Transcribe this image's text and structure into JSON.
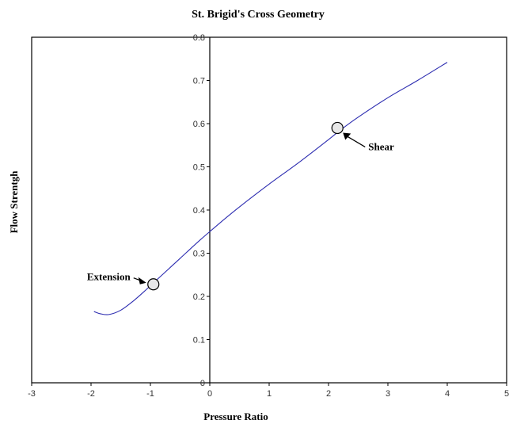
{
  "colors": {
    "curve": "#2c2cb0",
    "axis": "#000000",
    "marker_fill": "#e8e8e8",
    "text": "#000000"
  },
  "chart_data": {
    "type": "line",
    "title": "St. Brigid's Cross Geometry",
    "xlabel": "Pressure Ratio",
    "ylabel": "Flow Strentgh",
    "xlim": [
      -3,
      5
    ],
    "ylim": [
      0,
      0.8
    ],
    "x_ticks": [
      "-3",
      "-2",
      "-1",
      "0",
      "1",
      "2",
      "3",
      "4",
      "5"
    ],
    "y_ticks": [
      "0",
      "0.1",
      "0.2",
      "0.3",
      "0.4",
      "0.5",
      "0.6",
      "0.7",
      "0.8"
    ],
    "grid": false,
    "series": [
      {
        "x": [
          -1.95,
          -1.85,
          -1.7,
          -1.5,
          -1.3,
          -1.1,
          -1.0,
          -0.8,
          -0.5,
          -0.2,
          0,
          0.3,
          0.6,
          1.0,
          1.5,
          2.0,
          2.2,
          2.5,
          3.0,
          3.5,
          4.0
        ],
        "y": [
          0.165,
          0.16,
          0.158,
          0.168,
          0.188,
          0.212,
          0.225,
          0.25,
          0.288,
          0.326,
          0.35,
          0.385,
          0.418,
          0.46,
          0.51,
          0.563,
          0.585,
          0.615,
          0.66,
          0.7,
          0.742
        ]
      }
    ],
    "annotations": [
      {
        "text": "Extension",
        "x": -0.95,
        "y": 0.228
      },
      {
        "text": "Shear",
        "x": 2.15,
        "y": 0.59
      }
    ]
  }
}
